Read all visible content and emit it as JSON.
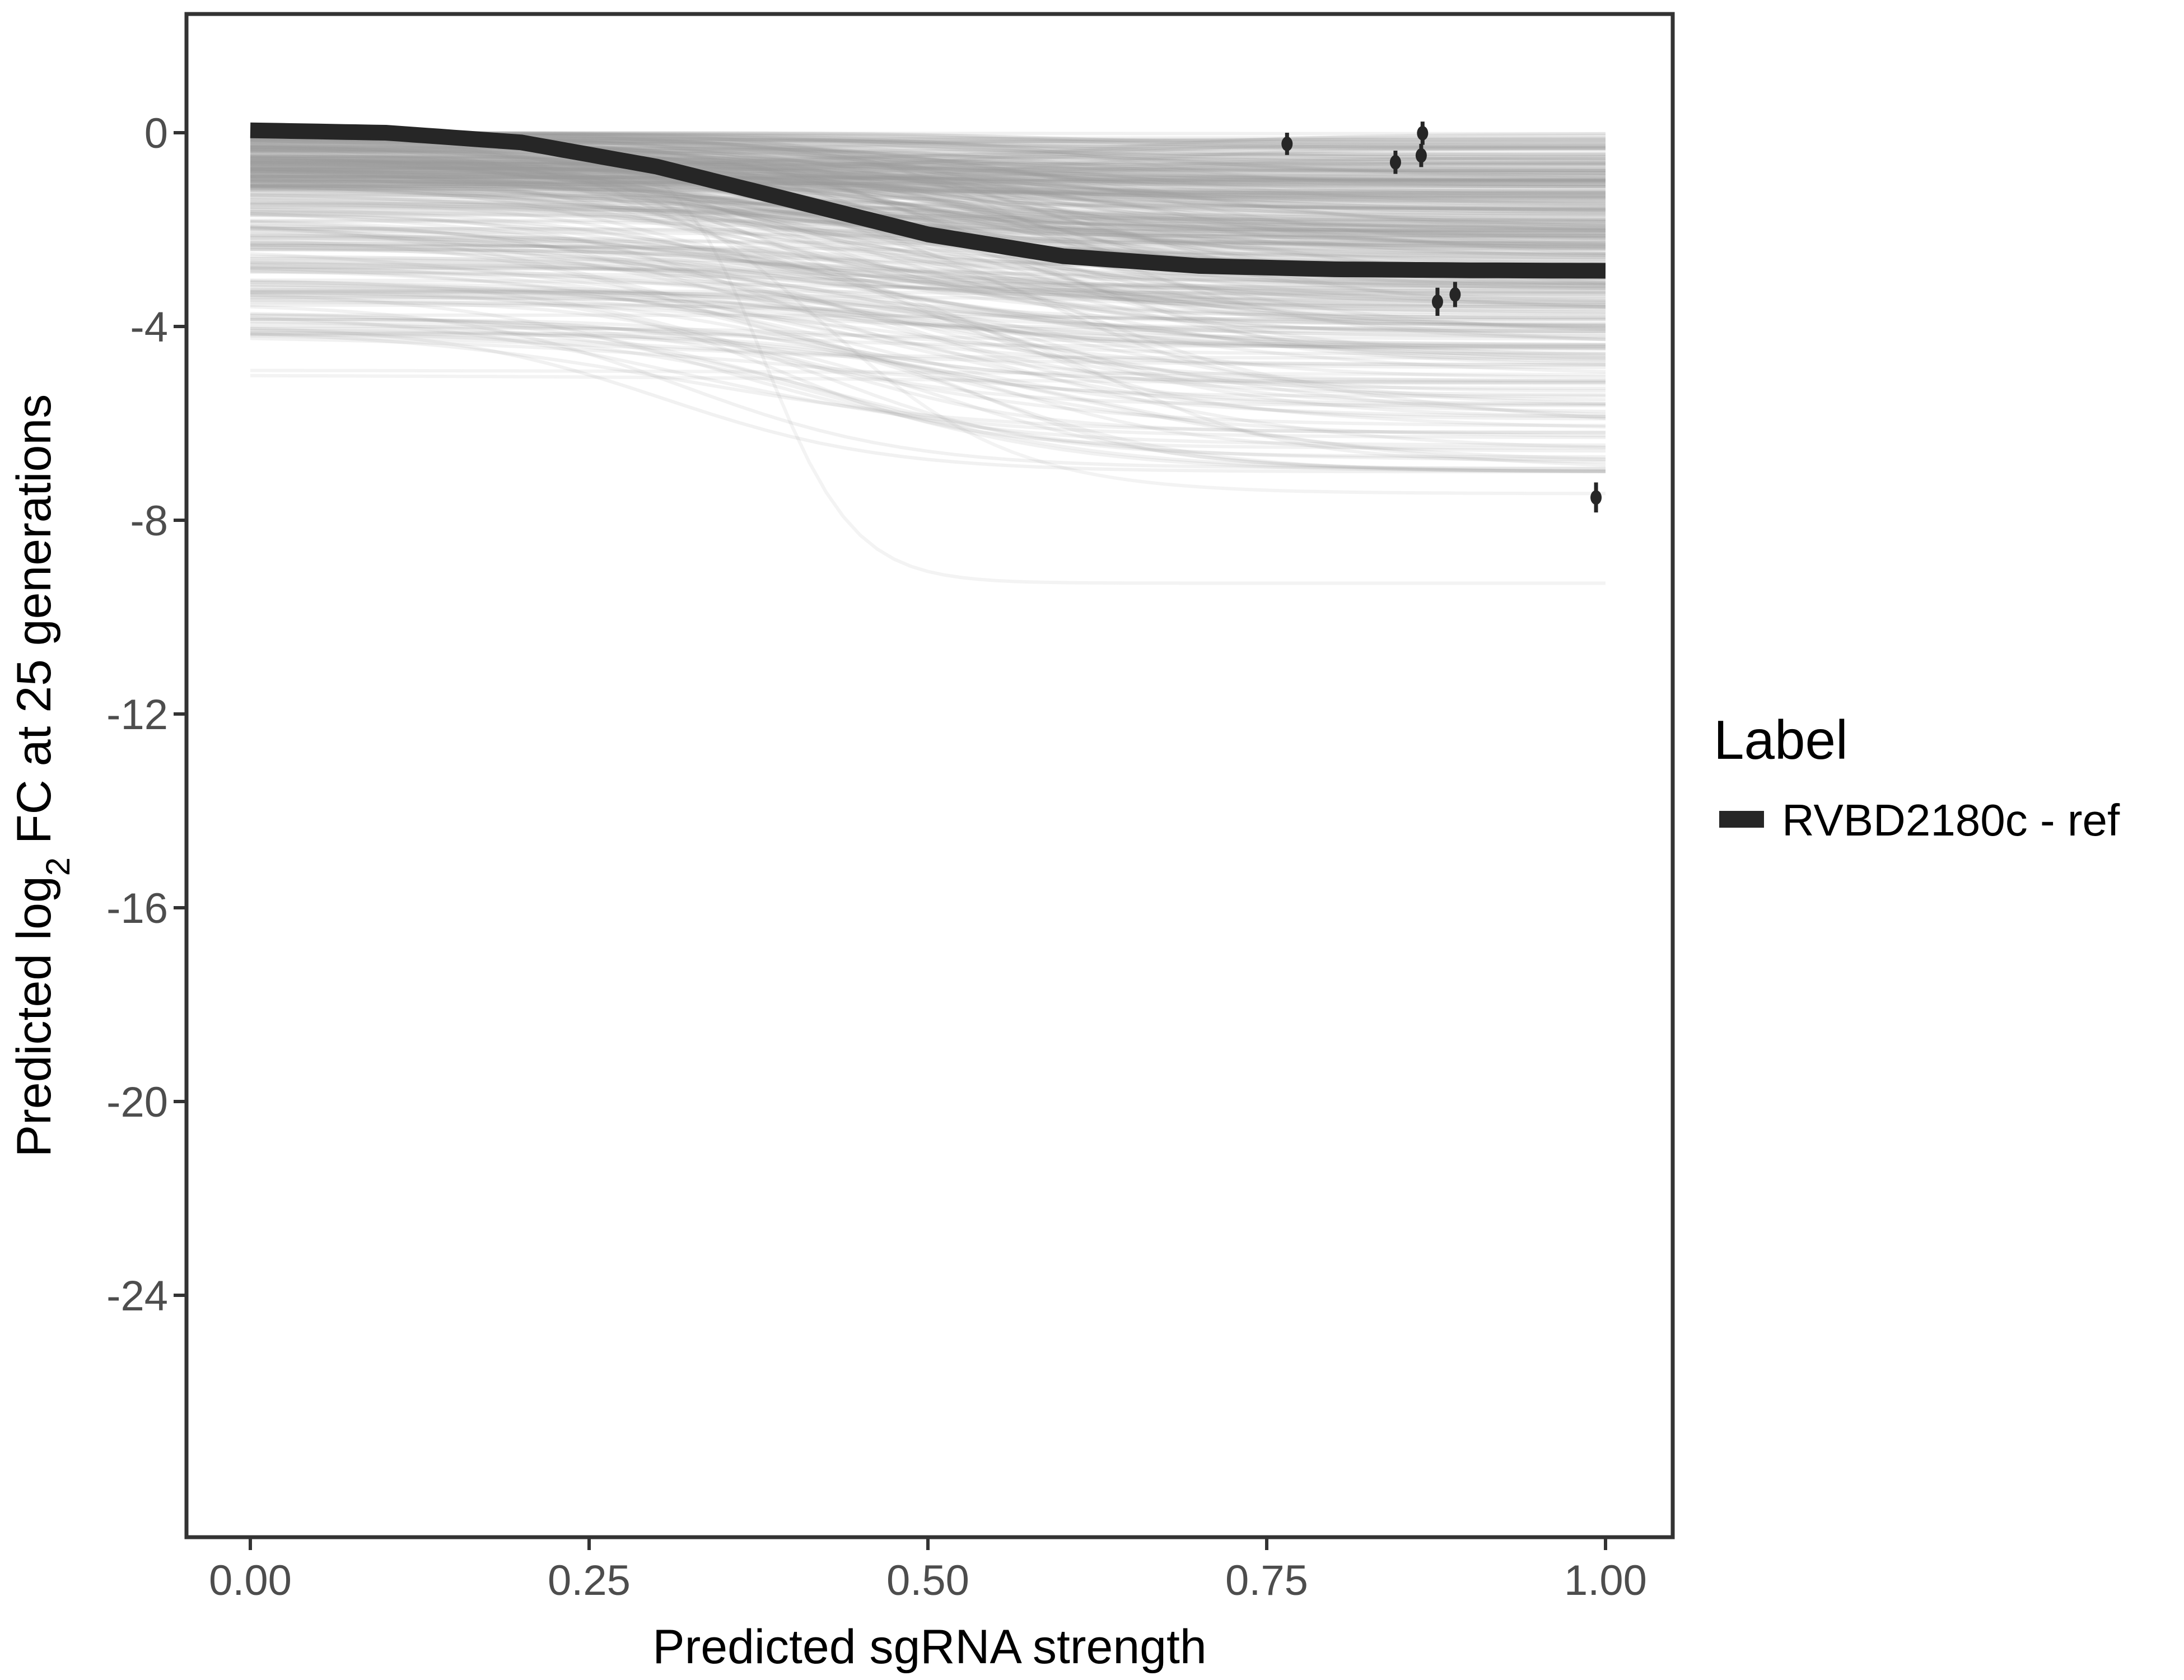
{
  "chart_data": {
    "type": "line",
    "xlabel": "Predicted sgRNA strength",
    "ylabel_prefix": "Predicted  log",
    "ylabel_sub": "2",
    "ylabel_suffix": " FC at 25 generations",
    "xlim": [
      -0.05,
      1.05
    ],
    "ylim": [
      -29.1,
      2.46
    ],
    "x_ticks": [
      "0.00",
      "0.25",
      "0.50",
      "0.75",
      "1.00"
    ],
    "x_tick_values": [
      0,
      0.25,
      0.5,
      0.75,
      1
    ],
    "y_ticks": [
      "0",
      "-4",
      "-8",
      "-12",
      "-16",
      "-20",
      "-24"
    ],
    "y_tick_values": [
      0,
      -4,
      -8,
      -12,
      -16,
      -20,
      -24
    ],
    "grid": false,
    "legend": {
      "title": "Label",
      "position": "right",
      "entries": [
        {
          "label": "RVBD2180c - ref",
          "color": "#262626"
        }
      ]
    },
    "series": [
      {
        "name": "RVBD2180c - ref",
        "color": "#262626",
        "x": [
          0,
          0.1,
          0.2,
          0.3,
          0.4,
          0.5,
          0.6,
          0.7,
          0.8,
          0.9,
          1.0
        ],
        "y": [
          0.05,
          0.0,
          -0.2,
          -0.7,
          -1.4,
          -2.1,
          -2.55,
          -2.75,
          -2.82,
          -2.84,
          -2.85
        ]
      }
    ],
    "posterior_draws": {
      "color": "#999999",
      "description_visible": false
    },
    "points": {
      "x": [
        0.765,
        0.845,
        0.864,
        0.865,
        0.876,
        0.889,
        0.993
      ],
      "y": [
        -0.23,
        -0.61,
        -0.47,
        -0.01,
        -3.49,
        -3.34,
        -7.53
      ],
      "error": [
        0.23,
        0.24,
        0.24,
        0.24,
        0.29,
        0.26,
        0.31
      ],
      "color": "#262626"
    }
  }
}
